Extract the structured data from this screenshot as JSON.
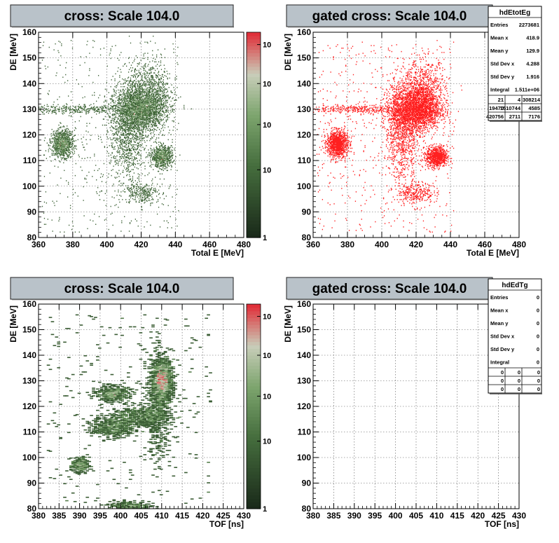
{
  "panels": [
    {
      "title": "cross: Scale 104.0",
      "xlabel": "Total E [MeV]",
      "ylabel": "DE [MeV]",
      "xticks": [
        "360",
        "380",
        "400",
        "420",
        "440",
        "460",
        "480"
      ],
      "yticks": [
        "80",
        "90",
        "100",
        "110",
        "120",
        "130",
        "140",
        "150",
        "160"
      ],
      "zticks": [
        "1",
        "10",
        "10",
        "10",
        "10"
      ],
      "stats": null
    },
    {
      "title": "gated cross: Scale 104.0",
      "xlabel": "Total E [MeV]",
      "ylabel": "DE [MeV]",
      "xticks": [
        "360",
        "380",
        "400",
        "420",
        "440",
        "460",
        "480"
      ],
      "yticks": [
        "80",
        "90",
        "100",
        "110",
        "120",
        "130",
        "140",
        "150",
        "160"
      ],
      "zticks": [],
      "stats": {
        "name": "hdEtotEg",
        "rows": [
          {
            "label": "Entries",
            "value": "2273681"
          },
          {
            "label": "Mean x",
            "value": "418.9"
          },
          {
            "label": "Mean y",
            "value": "129.9"
          },
          {
            "label": "Std Dev x",
            "value": "4.288"
          },
          {
            "label": "Std Dev y",
            "value": "1.916"
          },
          {
            "label": "Integral",
            "value": "1.511e+06"
          }
        ],
        "grid": [
          [
            "21",
            "4",
            "308214"
          ],
          [
            "19470",
            "1510744",
            "4585"
          ],
          [
            "420756",
            "2711",
            "7176"
          ]
        ]
      }
    },
    {
      "title": "cross: Scale 104.0",
      "xlabel": "TOF [ns]",
      "ylabel": "DE [MeV]",
      "xticks": [
        "380",
        "385",
        "390",
        "395",
        "400",
        "405",
        "410",
        "415",
        "420",
        "425",
        "430"
      ],
      "yticks": [
        "80",
        "90",
        "100",
        "110",
        "120",
        "130",
        "140",
        "150",
        "160"
      ],
      "zticks": [
        "1",
        "10",
        "10",
        "10",
        "10"
      ],
      "stats": null
    },
    {
      "title": "gated cross: Scale 104.0",
      "xlabel": "TOF [ns]",
      "ylabel": "DE [MeV]",
      "xticks": [
        "380",
        "385",
        "390",
        "395",
        "400",
        "405",
        "410",
        "415",
        "420",
        "425",
        "430"
      ],
      "yticks": [
        "80",
        "90",
        "100",
        "110",
        "120",
        "130",
        "140",
        "150",
        "160"
      ],
      "zticks": [],
      "stats": {
        "name": "hdEdTg",
        "rows": [
          {
            "label": "Entries",
            "value": "0"
          },
          {
            "label": "Mean x",
            "value": "0"
          },
          {
            "label": "Mean y",
            "value": "0"
          },
          {
            "label": "Std Dev x",
            "value": "0"
          },
          {
            "label": "Std Dev y",
            "value": "0"
          },
          {
            "label": "Integral",
            "value": "0"
          }
        ],
        "grid": [
          [
            "0",
            "0",
            "0"
          ],
          [
            "0",
            "0",
            "0"
          ],
          [
            "0",
            "0",
            "0"
          ]
        ]
      }
    }
  ],
  "colors": {
    "title_bg": "#b9c2c9",
    "gated_points": "#ff2020",
    "palette_low": "#1a2a1a",
    "palette_mid": "#5f8d57",
    "palette_light": "#c8d8b8",
    "palette_high": "#e0303a"
  },
  "chart_data": [
    {
      "type": "heatmap",
      "title": "cross: Scale 104.0",
      "xlabel": "Total E [MeV]",
      "ylabel": "DE [MeV]",
      "xlim": [
        360,
        480
      ],
      "ylim": [
        80,
        160
      ],
      "zscale": "log",
      "grid": true,
      "blobs": [
        {
          "x": 420,
          "y": 130,
          "dx": 7,
          "dy": 4,
          "peak": 1.0
        },
        {
          "x": 412,
          "y": 122,
          "dx": 5,
          "dy": 10,
          "peak": 0.45
        },
        {
          "x": 425,
          "y": 137,
          "dx": 6,
          "dy": 6,
          "peak": 0.3
        },
        {
          "x": 374,
          "y": 116.5,
          "dx": 3,
          "dy": 2.5,
          "peak": 0.45
        },
        {
          "x": 432,
          "y": 111.5,
          "dx": 3,
          "dy": 2,
          "peak": 0.35
        },
        {
          "x": 385,
          "y": 130,
          "dx": 18,
          "dy": 0.8,
          "peak": 0.15
        },
        {
          "x": 420,
          "y": 97.5,
          "dx": 5,
          "dy": 2,
          "peak": 0.1
        }
      ]
    },
    {
      "type": "heatmap",
      "title": "gated cross: Scale 104.0",
      "xlabel": "Total E [MeV]",
      "ylabel": "DE [MeV]",
      "xlim": [
        360,
        480
      ],
      "ylim": [
        80,
        160
      ],
      "grid": true,
      "stats": {
        "entries": 2273681,
        "mean_x": 418.9,
        "mean_y": 129.9,
        "std_x": 4.288,
        "std_y": 1.916,
        "integral": 1511000
      }
    },
    {
      "type": "heatmap",
      "title": "cross: Scale 104.0",
      "xlabel": "TOF [ns]",
      "ylabel": "DE [MeV]",
      "xlim": [
        380,
        430
      ],
      "ylim": [
        80,
        160
      ],
      "zscale": "log",
      "grid": true,
      "blobs": [
        {
          "x": 410,
          "y": 130,
          "dx": 1.2,
          "dy": 4,
          "peak": 1.0
        },
        {
          "x": 409,
          "y": 121,
          "dx": 1.5,
          "dy": 10,
          "peak": 0.45
        },
        {
          "x": 405,
          "y": 116,
          "dx": 3.5,
          "dy": 2,
          "peak": 0.4
        },
        {
          "x": 398,
          "y": 125,
          "dx": 2,
          "dy": 1.5,
          "peak": 0.3
        },
        {
          "x": 398,
          "y": 112,
          "dx": 2.5,
          "dy": 2,
          "peak": 0.35
        },
        {
          "x": 390,
          "y": 97,
          "dx": 1,
          "dy": 1.5,
          "peak": 0.2
        },
        {
          "x": 402,
          "y": 81,
          "dx": 2.5,
          "dy": 1,
          "peak": 0.2
        }
      ]
    },
    {
      "type": "heatmap",
      "title": "gated cross: Scale 104.0",
      "xlabel": "TOF [ns]",
      "ylabel": "DE [MeV]",
      "xlim": [
        380,
        430
      ],
      "ylim": [
        80,
        160
      ],
      "grid": true,
      "stats": {
        "entries": 0,
        "mean_x": 0,
        "mean_y": 0,
        "std_x": 0,
        "std_y": 0,
        "integral": 0
      }
    }
  ]
}
